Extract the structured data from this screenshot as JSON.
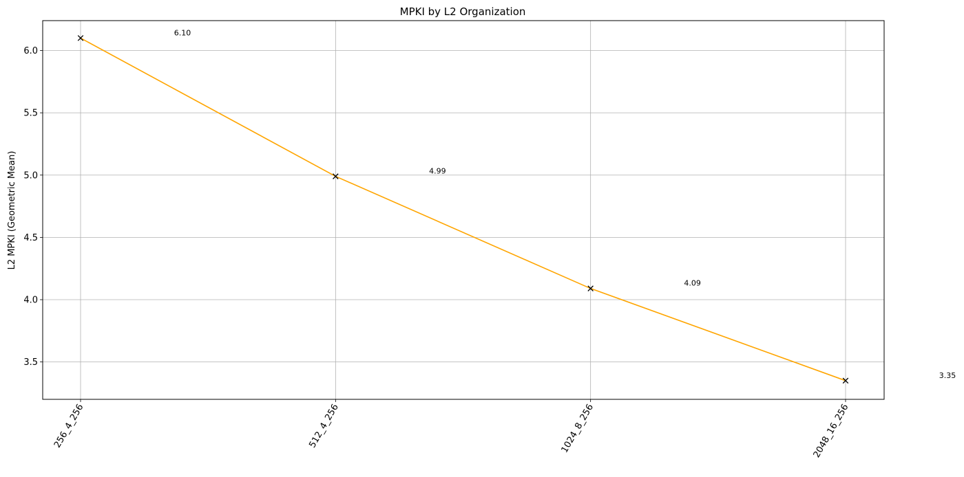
{
  "chart_data": {
    "type": "line",
    "title": "MPKI by L2 Organization",
    "xlabel": "",
    "ylabel": "L2 MPKI (Geometric Mean)",
    "categories": [
      "256_4_256",
      "512_4_256",
      "1024_8_256",
      "2048_16_256"
    ],
    "series": [
      {
        "values": [
          6.1,
          4.99,
          4.09,
          3.35
        ],
        "color": "#ffa500",
        "marker": "x"
      }
    ],
    "data_labels": [
      "6.10",
      "4.99",
      "4.09",
      "3.35"
    ],
    "ylim": [
      3.2,
      6.24
    ],
    "yticks": [
      3.5,
      4.0,
      4.5,
      5.0,
      5.5,
      6.0
    ],
    "ytick_labels": [
      "3.5",
      "4.0",
      "4.5",
      "5.0",
      "5.5",
      "6.0"
    ],
    "xtick_rotation": 60,
    "grid": true,
    "legend": "none"
  }
}
